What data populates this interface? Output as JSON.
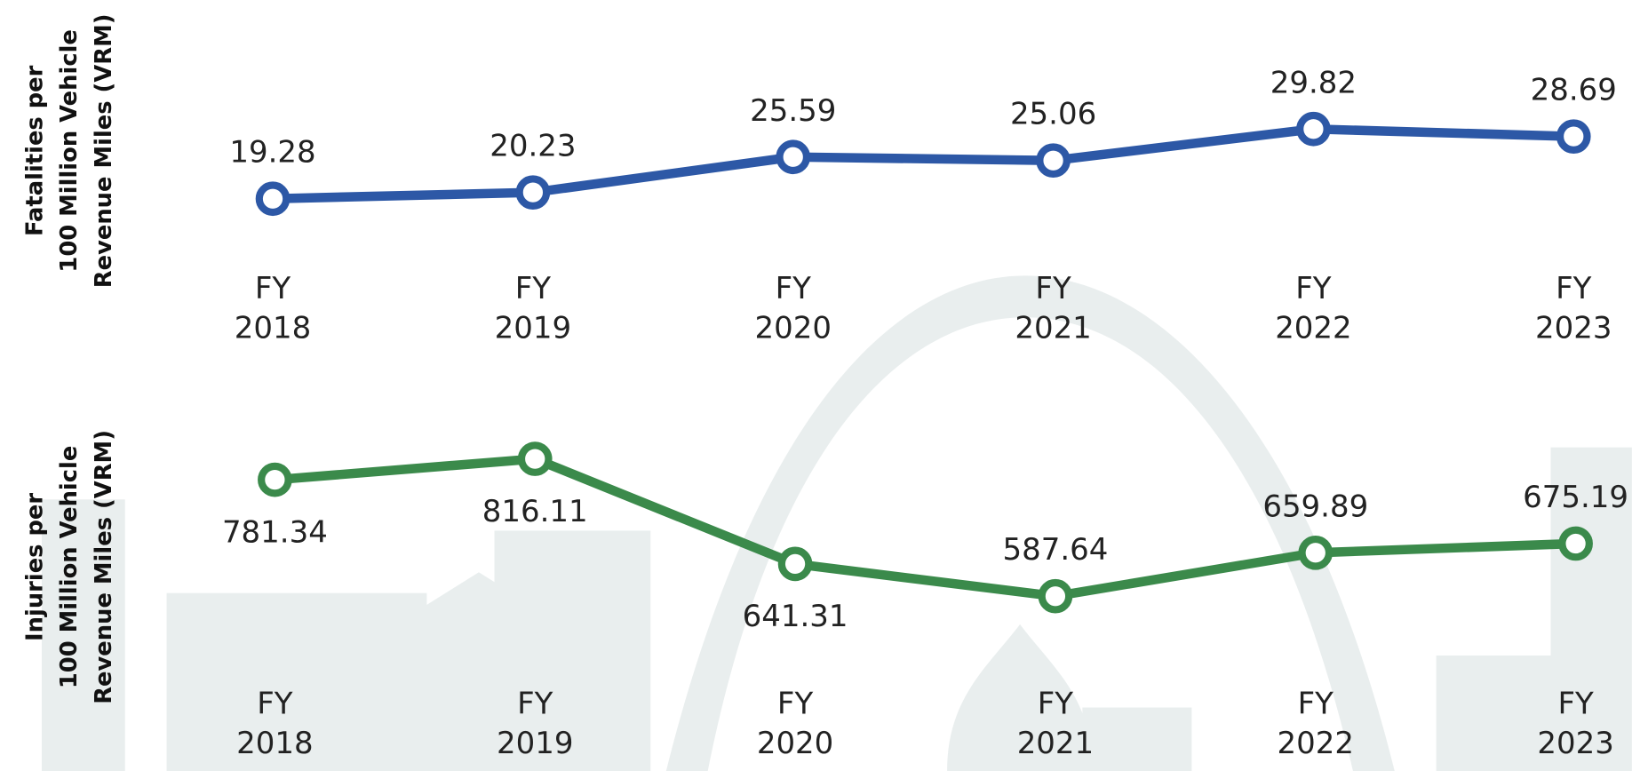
{
  "chart_data": [
    {
      "type": "line",
      "y_label": [
        "Fatalities per",
        "100 Million Vehicle",
        "Revenue Miles (VRM)"
      ],
      "categories": [
        "FY 2018",
        "FY 2019",
        "FY 2020",
        "FY 2021",
        "FY 2022",
        "FY 2023"
      ],
      "series": [
        {
          "color": "#2d58a6",
          "values": [
            19.28,
            20.23,
            25.59,
            25.06,
            29.82,
            28.69
          ]
        }
      ]
    },
    {
      "type": "line",
      "y_label": [
        "Injuries per",
        "100 Million Vehicle",
        "Revenue Miles (VRM)"
      ],
      "categories": [
        "FY 2018",
        "FY 2019",
        "FY 2020",
        "FY 2021",
        "FY 2022",
        "FY 2023"
      ],
      "series": [
        {
          "color": "#3b8a4b",
          "values": [
            781.34,
            816.11,
            641.31,
            587.64,
            659.89,
            675.19
          ]
        }
      ]
    }
  ]
}
